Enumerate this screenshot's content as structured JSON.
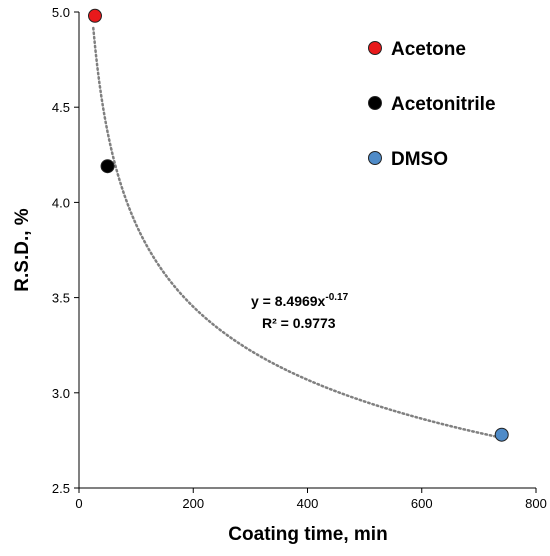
{
  "chart_data": {
    "type": "scatter",
    "xlabel": "Coating time, min",
    "ylabel": "R.S.D., %",
    "xlim": [
      0,
      800
    ],
    "ylim": [
      2.5,
      5.0
    ],
    "x_ticks": [
      0,
      200,
      400,
      600,
      800
    ],
    "y_ticks": [
      2.5,
      3.0,
      3.5,
      4.0,
      4.5,
      5.0
    ],
    "x_tick_labels": [
      "0",
      "200",
      "400",
      "600",
      "800"
    ],
    "y_tick_labels": [
      "2.5",
      "3.0",
      "3.5",
      "4.0",
      "4.5",
      "5.0"
    ],
    "grid": false,
    "legend_position": "top-right",
    "series": [
      {
        "name": "Acetone",
        "color": "#e8191b",
        "points": [
          {
            "x": 28,
            "y": 4.98
          }
        ]
      },
      {
        "name": "Acetonitrile",
        "color": "#000000",
        "points": [
          {
            "x": 50,
            "y": 4.19
          }
        ]
      },
      {
        "name": "DMSO",
        "color": "#4f8bc8",
        "points": [
          {
            "x": 740,
            "y": 2.78
          }
        ]
      }
    ],
    "trendline": {
      "type": "power",
      "a": 8.4969,
      "b": -0.17,
      "x_range": [
        25,
        740
      ],
      "style": "dotted",
      "color": "#808080"
    },
    "annotation": {
      "equation_prefix": "y = 8.4969x",
      "equation_exponent": "-0.17",
      "r_squared": "R² = 0.9773"
    }
  }
}
